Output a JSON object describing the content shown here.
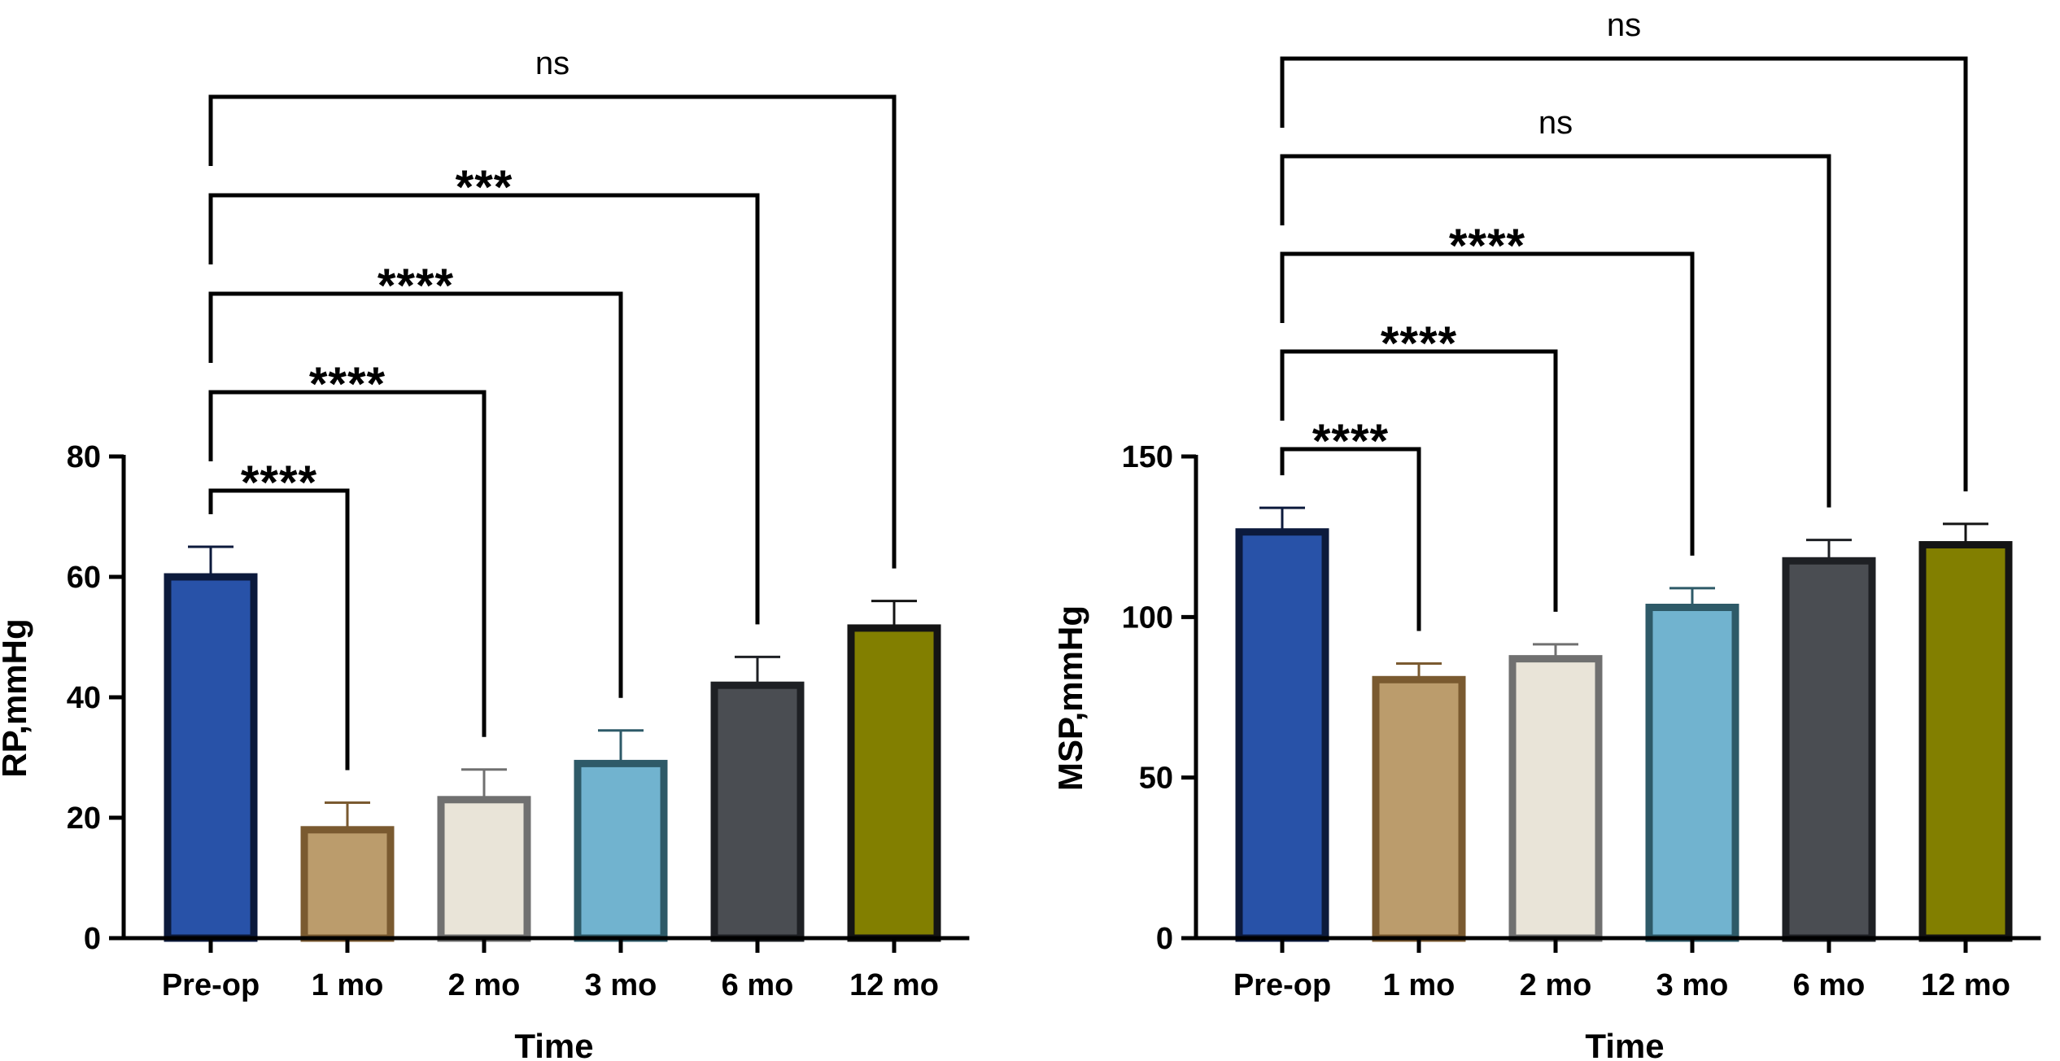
{
  "chart_data": [
    {
      "type": "bar",
      "title": "",
      "xlabel": "Time",
      "ylabel": "RP,mmHg",
      "ylim": [
        0,
        80
      ],
      "yticks": [
        0,
        20,
        40,
        60,
        80
      ],
      "categories": [
        "Pre-op",
        "1 mo",
        "2 mo",
        "3 mo",
        "6 mo",
        "12 mo"
      ],
      "values": [
        60,
        18,
        23,
        29,
        42,
        51.5
      ],
      "errors": [
        5,
        4.5,
        5,
        5.5,
        4.7,
        4.5
      ],
      "colors": {
        "fill": [
          "#2852a8",
          "#bb9c6c",
          "#e9e4d8",
          "#71b3cf",
          "#4a4d52",
          "#827f00"
        ],
        "edge": [
          "#0c1a3c",
          "#7a5a30",
          "#707070",
          "#2e5a68",
          "#1e2024",
          "#141414"
        ]
      },
      "comparisons": [
        {
          "from": 0,
          "to": 1,
          "label": "****"
        },
        {
          "from": 0,
          "to": 2,
          "label": "****"
        },
        {
          "from": 0,
          "to": 3,
          "label": "****"
        },
        {
          "from": 0,
          "to": 4,
          "label": "***"
        },
        {
          "from": 0,
          "to": 5,
          "label": "ns"
        }
      ]
    },
    {
      "type": "bar",
      "title": "",
      "xlabel": "Time",
      "ylabel": "MSP,mmHg",
      "ylim": [
        0,
        150
      ],
      "yticks": [
        0,
        50,
        100,
        150
      ],
      "categories": [
        "Pre-op",
        "1 mo",
        "2 mo",
        "3 mo",
        "6 mo",
        "12 mo"
      ],
      "values": [
        126.5,
        80.5,
        87,
        103,
        117.5,
        122.5
      ],
      "errors": [
        7.5,
        5,
        4.5,
        6,
        6.5,
        6.5
      ],
      "colors": {
        "fill": [
          "#2852a8",
          "#bb9c6c",
          "#e9e4d8",
          "#71b3cf",
          "#4a4d52",
          "#827f00"
        ],
        "edge": [
          "#0c1a3c",
          "#7a5a30",
          "#707070",
          "#2e5a68",
          "#1e2024",
          "#141414"
        ]
      },
      "comparisons": [
        {
          "from": 0,
          "to": 1,
          "label": "****"
        },
        {
          "from": 0,
          "to": 2,
          "label": "****"
        },
        {
          "from": 0,
          "to": 3,
          "label": "****"
        },
        {
          "from": 0,
          "to": 4,
          "label": "ns"
        },
        {
          "from": 0,
          "to": 5,
          "label": "ns"
        }
      ]
    }
  ]
}
